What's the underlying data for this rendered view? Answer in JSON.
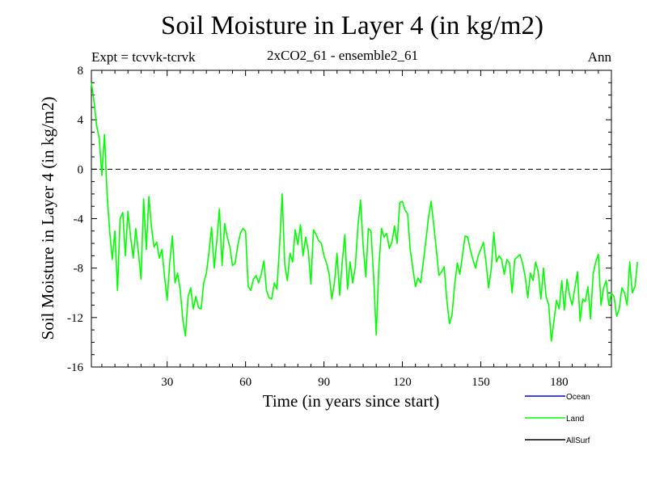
{
  "chart_data": {
    "type": "line",
    "title": "Soil Moisture in Layer 4 (in kg/m2)",
    "subtitle": "2xCO2_61 - ensemble2_61",
    "experiment": "Expt = tcvvk-tcrvk",
    "period": "Ann",
    "xlabel": "Time (in years since start)",
    "ylabel": "Soil Moisture in Layer 4 (in kg/m2)",
    "xlim": [
      1,
      200
    ],
    "ylim": [
      -16,
      8
    ],
    "xticks": [
      30,
      60,
      90,
      120,
      150,
      180
    ],
    "yticks": [
      8,
      4,
      0,
      -4,
      -8,
      -12,
      -16
    ],
    "zero_line": "dashed",
    "legend": [
      {
        "name": "Ocean",
        "color": "#0000ff"
      },
      {
        "name": "Land",
        "color": "#00ff00"
      },
      {
        "name": "AllSurf",
        "color": "#000000"
      }
    ],
    "series": [
      {
        "name": "Land",
        "color": "#00ff00",
        "x_start": 1,
        "x_step": 1,
        "values": [
          7.0,
          5.5,
          3.5,
          2.5,
          -0.5,
          2.8,
          -2.0,
          -5.0,
          -7.3,
          -5.0,
          -9.8,
          -4.0,
          -3.5,
          -7.0,
          -3.4,
          -5.5,
          -7.2,
          -4.8,
          -6.8,
          -8.9,
          -2.4,
          -6.5,
          -2.2,
          -4.7,
          -6.3,
          -5.9,
          -7.2,
          -6.5,
          -8.7,
          -10.6,
          -7.5,
          -5.4,
          -9.2,
          -8.4,
          -9.8,
          -12.2,
          -13.5,
          -10.3,
          -9.6,
          -11.3,
          -10.3,
          -11.2,
          -11.3,
          -9.2,
          -8.4,
          -6.7,
          -4.7,
          -8.0,
          -5.8,
          -3.2,
          -7.8,
          -4.4,
          -5.5,
          -6.3,
          -7.8,
          -7.6,
          -6.2,
          -5.2,
          -4.8,
          -5.0,
          -9.5,
          -9.8,
          -8.9,
          -8.6,
          -9.2,
          -8.5,
          -7.4,
          -9.8,
          -10.4,
          -10.5,
          -9.2,
          -9.7,
          -6.3,
          -2.0,
          -7.7,
          -9.0,
          -6.8,
          -7.5,
          -4.9,
          -6.1,
          -4.5,
          -7.0,
          -5.5,
          -6.6,
          -9.3,
          -4.9,
          -5.3,
          -5.8,
          -6.0,
          -7.0,
          -7.6,
          -8.5,
          -10.5,
          -9.2,
          -6.8,
          -10.2,
          -7.5,
          -5.3,
          -9.7,
          -7.5,
          -9.2,
          -7.9,
          -4.6,
          -2.5,
          -6.2,
          -8.7,
          -4.8,
          -5.0,
          -8.7,
          -13.4,
          -8.0,
          -4.8,
          -5.5,
          -5.2,
          -6.4,
          -5.9,
          -4.6,
          -6.0,
          -2.7,
          -2.6,
          -3.3,
          -3.6,
          -6.5,
          -8.0,
          -9.5,
          -8.8,
          -9.2,
          -7.5,
          -5.8,
          -3.9,
          -2.6,
          -4.5,
          -6.5,
          -8.6,
          -8.3,
          -7.9,
          -10.5,
          -12.5,
          -11.8,
          -9.4,
          -7.6,
          -8.5,
          -7.0,
          -5.4,
          -5.5,
          -6.5,
          -7.3,
          -8.0,
          -7.0,
          -6.5,
          -5.9,
          -7.5,
          -9.6,
          -8.1,
          -5.1,
          -7.5,
          -7.0,
          -7.3,
          -8.5,
          -7.3,
          -7.6,
          -10.0,
          -7.3,
          -7.1,
          -6.9,
          -7.6,
          -8.7,
          -10.4,
          -8.4,
          -9.0,
          -7.5,
          -8.3,
          -10.5,
          -8.0,
          -10.3,
          -11.0,
          -13.9,
          -12.3,
          -10.6,
          -11.3,
          -9.0,
          -11.4,
          -8.9,
          -10.2,
          -11.0,
          -9.6,
          -8.3,
          -12.3,
          -10.5,
          -10.7,
          -9.5,
          -12.1,
          -8.5,
          -7.5,
          -6.9,
          -11.0,
          -9.6,
          -9.0,
          -11.0,
          -10.0,
          -10.3,
          -11.9,
          -11.3,
          -9.6,
          -10.0,
          -11.0,
          -7.5,
          -10.0,
          -9.5,
          -7.5
        ]
      },
      {
        "name": "Ocean",
        "color": "#0000ff",
        "values": []
      },
      {
        "name": "AllSurf",
        "color": "#000000",
        "values": []
      }
    ]
  }
}
